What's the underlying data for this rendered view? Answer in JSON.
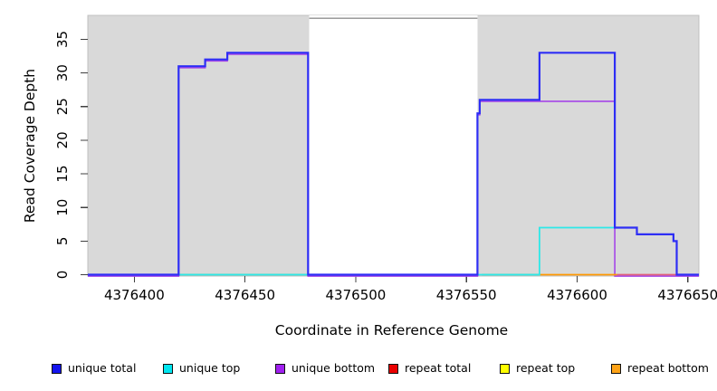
{
  "chart_data": {
    "type": "line",
    "subtype": "step-coverage",
    "title": "",
    "xlabel": "Coordinate in Reference Genome",
    "ylabel": "Read Coverage Depth",
    "x_ticks": [
      4376400,
      4376450,
      4376500,
      4376550,
      4376600,
      4376650
    ],
    "y_ticks": [
      0,
      5,
      10,
      15,
      20,
      25,
      30,
      35
    ],
    "xlim": [
      4376379,
      4376655
    ],
    "ylim": [
      0,
      38.5
    ],
    "grid": "off",
    "background": {
      "plot_fill": "#d9d9d9",
      "plot_border": "#c0c0c0",
      "masked_region": {
        "from": 4376479,
        "to": 4376555,
        "fill": "#ffffff",
        "top_border": "#8f8f8f"
      }
    },
    "series": [
      {
        "name": "unique total",
        "color": "#2e2ef5",
        "points": [
          [
            4376379,
            0
          ],
          [
            4376420,
            0
          ],
          [
            4376420,
            31
          ],
          [
            4376432,
            31
          ],
          [
            4376432,
            32
          ],
          [
            4376442,
            32
          ],
          [
            4376442,
            33
          ],
          [
            4376478.5,
            33
          ],
          [
            4376478.5,
            0
          ],
          [
            4376555,
            0
          ],
          [
            4376555,
            24
          ],
          [
            4376556,
            24
          ],
          [
            4376556,
            26
          ],
          [
            4376583,
            26
          ],
          [
            4376583,
            33
          ],
          [
            4376617,
            33
          ],
          [
            4376617,
            7
          ],
          [
            4376627,
            7
          ],
          [
            4376627,
            6
          ],
          [
            4376643.5,
            6
          ],
          [
            4376643.5,
            5
          ],
          [
            4376645,
            5
          ],
          [
            4376645,
            0
          ],
          [
            4376655,
            0
          ]
        ]
      },
      {
        "name": "unique top",
        "color": "#2ee8e8",
        "points": [
          [
            4376379,
            0
          ],
          [
            4376583,
            0
          ],
          [
            4376583,
            7
          ],
          [
            4376627,
            7
          ],
          [
            4376627,
            6
          ],
          [
            4376643.5,
            6
          ],
          [
            4376643.5,
            5
          ],
          [
            4376645,
            5
          ],
          [
            4376645,
            0
          ],
          [
            4376655,
            0
          ]
        ]
      },
      {
        "name": "unique bottom",
        "color": "#a546e8",
        "points": [
          [
            4376379,
            0
          ],
          [
            4376420,
            0
          ],
          [
            4376420,
            31
          ],
          [
            4376432,
            31
          ],
          [
            4376432,
            32
          ],
          [
            4376442,
            32
          ],
          [
            4376442,
            33
          ],
          [
            4376478.5,
            33
          ],
          [
            4376478.5,
            0
          ],
          [
            4376555,
            0
          ],
          [
            4376555,
            24
          ],
          [
            4376556,
            24
          ],
          [
            4376556,
            26
          ],
          [
            4376617,
            26
          ],
          [
            4376617,
            0
          ],
          [
            4376655,
            0
          ]
        ]
      },
      {
        "name": "repeat total",
        "color": "#df6079",
        "points": [
          [
            4376379,
            0
          ],
          [
            4376655,
            0
          ]
        ]
      },
      {
        "name": "repeat top",
        "color": "#ffff00",
        "points": [
          [
            4376379,
            0
          ],
          [
            4376655,
            0
          ]
        ]
      },
      {
        "name": "repeat bottom",
        "color": "#ff9800",
        "points": [
          [
            4376379,
            0
          ],
          [
            4376655,
            0
          ]
        ]
      }
    ],
    "baseline_overlap_segments": [
      {
        "from": 4376420,
        "to": 4376478.5,
        "color": "#5bbe6e"
      },
      {
        "from": 4376557,
        "to": 4376583,
        "color": "#5bbe6e"
      },
      {
        "from": 4376583,
        "to": 4376618,
        "color": "#ff9800"
      },
      {
        "from": 4376618,
        "to": 4376645,
        "color": "#df6079"
      }
    ],
    "legend": {
      "position": "bottom",
      "items": [
        {
          "label": "unique total",
          "color": "#1414ee"
        },
        {
          "label": "unique top",
          "color": "#00e6f0"
        },
        {
          "label": "unique bottom",
          "color": "#a020f0"
        },
        {
          "label": "repeat total",
          "color": "#ea0000"
        },
        {
          "label": "repeat top",
          "color": "#ffff00"
        },
        {
          "label": "repeat bottom",
          "color": "#ffa317"
        }
      ]
    }
  }
}
